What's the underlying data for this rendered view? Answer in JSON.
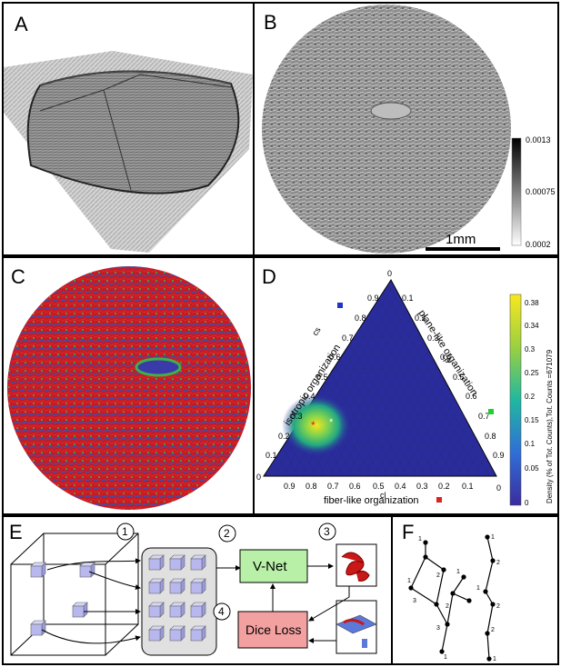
{
  "panels": {
    "a": {
      "label": "A"
    },
    "b": {
      "label": "B",
      "scalebar": "1mm",
      "colorbar_ticks": [
        "0.0013",
        "0.00075",
        "0.0002"
      ]
    },
    "c": {
      "label": "C"
    },
    "d": {
      "label": "D",
      "axis_isotropic": "isotropic organization",
      "axis_plane": "plane-like organization",
      "axis_fiber": "fiber-like organization",
      "label_cs": "cs",
      "label_cp": "cp",
      "label_cl": "cl",
      "ticks_left": [
        "0.9",
        "0.8",
        "0.7",
        "0.6",
        "0.5",
        "0.4",
        "0.3",
        "0.2",
        "0.1"
      ],
      "ticks_right": [
        "0.1",
        "0.2",
        "0.3",
        "0.4",
        "0.5",
        "0.6",
        "0.7",
        "0.8",
        "0.9"
      ],
      "ticks_bottom": [
        "0.9",
        "0.8",
        "0.7",
        "0.6",
        "0.5",
        "0.4",
        "0.3",
        "0.2",
        "0.1"
      ],
      "corner_top": "0",
      "corner_left": "0",
      "corner_right": "0",
      "colorbar_ticks": [
        "0.38",
        "0.34",
        "0.3",
        "0.25",
        "0.2",
        "0.15",
        "0.1",
        "0.05",
        "0"
      ],
      "colorbar_label": "Density (% of Tot. Counts),Tot. Counts =671079"
    },
    "e": {
      "label": "E",
      "step1": "1",
      "step2": "2",
      "step3": "3",
      "step4": "4",
      "vnet": "V-Net",
      "dice": "Dice Loss"
    },
    "f": {
      "label": "F",
      "tree1_labels": [
        "1",
        "1",
        "2",
        "3",
        "2",
        "1",
        "3",
        "1"
      ],
      "tree2_labels": [
        "1",
        "2",
        "1",
        "2",
        "2",
        "1"
      ]
    }
  }
}
